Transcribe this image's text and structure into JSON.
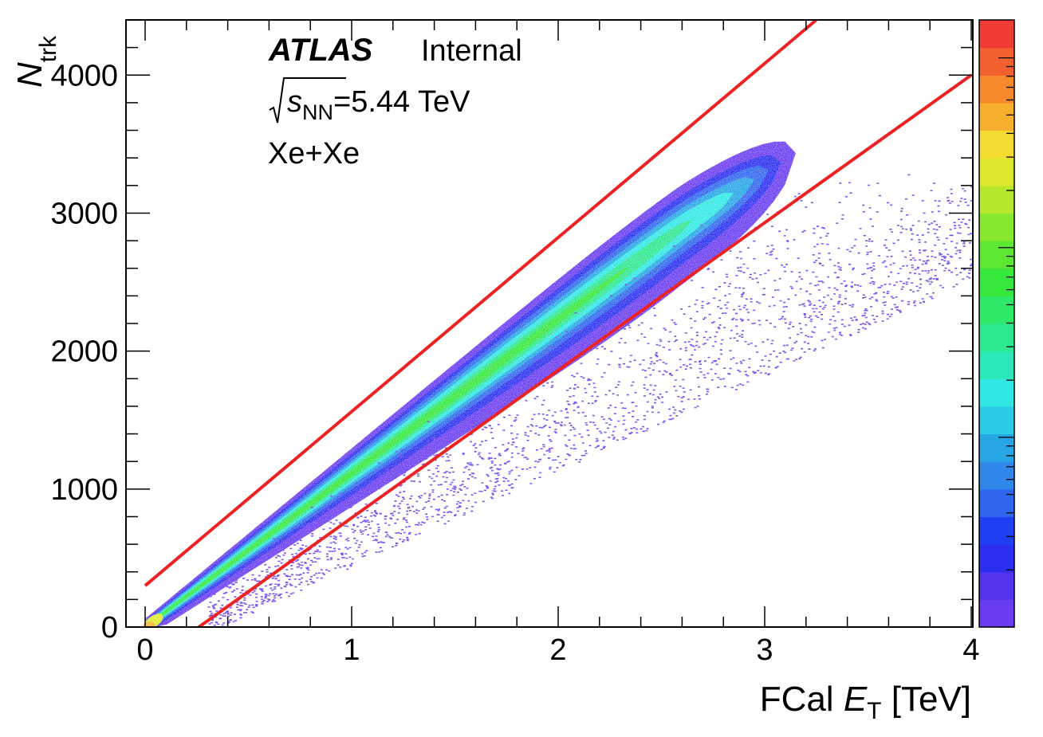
{
  "chart_data": {
    "type": "heatmap",
    "title": "",
    "xlabel": {
      "main": "FCal ",
      "italic": "E",
      "sub": "T",
      "unit": " [TeV]"
    },
    "ylabel": {
      "italic": "N",
      "sub": "trk"
    },
    "xlim": [
      0,
      4
    ],
    "ylim": [
      0,
      4400
    ],
    "xticks": [
      "0",
      "1",
      "2",
      "3",
      "4"
    ],
    "yticks": [
      "0",
      "1000",
      "2000",
      "3000",
      "4000"
    ],
    "x_minor_step": 0.2,
    "y_minor_step": 200,
    "log_z": true,
    "grid": false,
    "annotations": {
      "experiment": "ATLAS",
      "status": "Internal",
      "energy_sym": "s",
      "energy_sub": "NN",
      "energy_value": "=5.44 TeV",
      "system": "Xe+Xe"
    },
    "correlation_band": {
      "description_points": [
        [
          0.0,
          0
        ],
        [
          0.5,
          600
        ],
        [
          1.0,
          1150
        ],
        [
          1.5,
          1700
        ],
        [
          2.0,
          2250
        ],
        [
          2.5,
          2800
        ],
        [
          2.9,
          3250
        ]
      ],
      "upper_edge_core": [
        [
          0.0,
          60
        ],
        [
          1.0,
          1350
        ],
        [
          2.0,
          2550
        ],
        [
          2.7,
          3300
        ],
        [
          3.0,
          3550
        ]
      ],
      "lower_edge_core": [
        [
          0.1,
          0
        ],
        [
          1.0,
          950
        ],
        [
          2.0,
          1950
        ],
        [
          2.7,
          2750
        ],
        [
          3.1,
          3200
        ]
      ],
      "tail_extends_to": [
        4.0,
        2900
      ]
    },
    "cut_lines": [
      {
        "name": "",
        "color": "#ee2222",
        "points": [
          [
            0.0,
            300
          ],
          [
            3.25,
            4400
          ]
        ]
      },
      {
        "name": "",
        "color": "#ee2222",
        "points": [
          [
            0.26,
            0
          ],
          [
            4.0,
            4000
          ]
        ]
      }
    ],
    "palette": [
      "#6a3cf0",
      "#5533ee",
      "#2a2ff0",
      "#1f3ff2",
      "#2f66ee",
      "#2f87ea",
      "#27a6e6",
      "#2bcbe8",
      "#2fe8e4",
      "#2be8b8",
      "#2ce890",
      "#2ee868",
      "#36e83c",
      "#5ce832",
      "#88e82e",
      "#b6e82c",
      "#dde82c",
      "#f4dc30",
      "#f7b02e",
      "#f5892c",
      "#f26030",
      "#f03a34"
    ]
  }
}
